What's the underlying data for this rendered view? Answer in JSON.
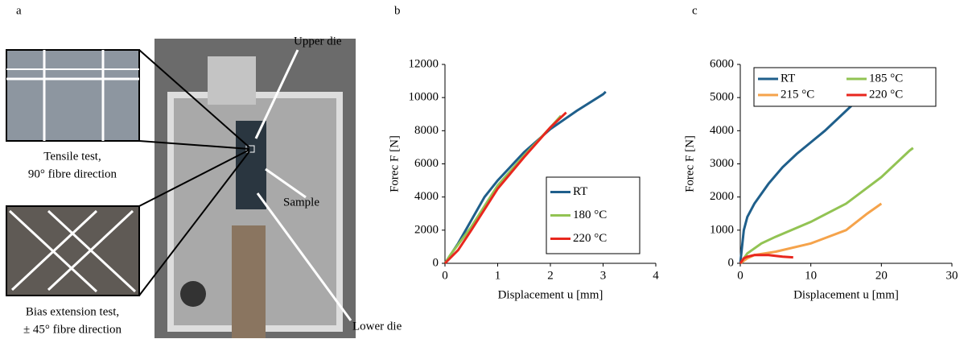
{
  "panel_a": {
    "label": "a",
    "annotations": {
      "upper_die": "Upper die",
      "sample": "Sample",
      "lower_die": "Lower die"
    },
    "tensile_caption": [
      "Tensile test,",
      "90° fibre direction"
    ],
    "bias_caption": [
      "Bias extension test,",
      "± 45° fibre direction"
    ]
  },
  "chart_data": [
    {
      "type": "line",
      "panel_label": "b",
      "xlabel": "Displacement u [mm]",
      "ylabel": "Forec F [N]",
      "xlim": [
        0,
        4
      ],
      "xticks": [
        0,
        1,
        2,
        3,
        4
      ],
      "ylim": [
        0,
        12000
      ],
      "yticks": [
        0,
        2000,
        4000,
        6000,
        8000,
        10000,
        12000
      ],
      "legend": "lower right",
      "legend_columns": 1,
      "series": [
        {
          "name": "RT",
          "color": "#1f5f8b",
          "x": [
            0,
            0.25,
            0.5,
            0.75,
            1,
            1.5,
            2,
            2.5,
            3,
            3.05
          ],
          "values": [
            0,
            1200,
            2600,
            4000,
            5000,
            6700,
            8100,
            9200,
            10200,
            10350
          ]
        },
        {
          "name": "180 °C",
          "color": "#92c353",
          "x": [
            0,
            0.1,
            0.5,
            1,
            1.5,
            2,
            2.2
          ],
          "values": [
            0,
            500,
            2200,
            4700,
            6500,
            8200,
            8900
          ]
        },
        {
          "name": "220 °C",
          "color": "#e8271e",
          "x": [
            0,
            0.25,
            0.5,
            1,
            1.5,
            2,
            2.3
          ],
          "values": [
            0,
            800,
            2000,
            4500,
            6400,
            8200,
            9100
          ]
        }
      ]
    },
    {
      "type": "line",
      "panel_label": "c",
      "xlabel": "Displacement u [mm]",
      "ylabel": "Forec F [N]",
      "xlim": [
        0,
        30
      ],
      "xticks": [
        0,
        10,
        20,
        30
      ],
      "ylim": [
        0,
        6000
      ],
      "yticks": [
        0,
        1000,
        2000,
        3000,
        4000,
        5000,
        6000
      ],
      "legend": "upper left",
      "legend_columns": 2,
      "series": [
        {
          "name": "RT",
          "color": "#1f5f8b",
          "x": [
            0,
            0.5,
            1,
            2,
            4,
            6,
            8,
            10,
            12,
            14,
            16,
            17
          ],
          "values": [
            0,
            1000,
            1400,
            1800,
            2400,
            2900,
            3300,
            3650,
            4000,
            4400,
            4800,
            5050
          ]
        },
        {
          "name": "185 °C",
          "color": "#92c353",
          "x": [
            0,
            1,
            3,
            5,
            10,
            15,
            20,
            24,
            24.5
          ],
          "values": [
            0,
            300,
            600,
            800,
            1250,
            1800,
            2600,
            3400,
            3480
          ]
        },
        {
          "name": "215 °C",
          "color": "#f5a34b",
          "x": [
            0,
            1,
            2,
            5,
            10,
            15,
            18,
            20
          ],
          "values": [
            0,
            150,
            250,
            350,
            600,
            1000,
            1500,
            1800
          ]
        },
        {
          "name": "220 °C",
          "color": "#e8271e",
          "x": [
            0,
            0.5,
            1,
            2,
            4,
            6,
            7.5
          ],
          "values": [
            0,
            150,
            200,
            250,
            250,
            200,
            180
          ]
        }
      ]
    }
  ]
}
